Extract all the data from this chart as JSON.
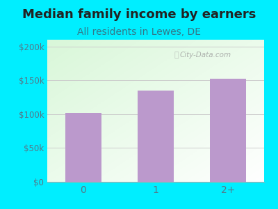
{
  "title": "Median family income by earners",
  "subtitle": "All residents in Lewes, DE",
  "categories": [
    "0",
    "1",
    "2+"
  ],
  "values": [
    102000,
    135000,
    152000
  ],
  "bar_color": "#bb99cc",
  "background_outer": "#00eeff",
  "title_color": "#222222",
  "title_fontsize": 13,
  "subtitle_fontsize": 10,
  "subtitle_color": "#337788",
  "tick_color": "#557788",
  "ylim": [
    0,
    210000
  ],
  "yticks": [
    0,
    50000,
    100000,
    150000,
    200000
  ],
  "ytick_labels": [
    "$0",
    "$50k",
    "$100k",
    "$150k",
    "$200k"
  ],
  "watermark": "City-Data.com",
  "grid_color": "#cccccc"
}
